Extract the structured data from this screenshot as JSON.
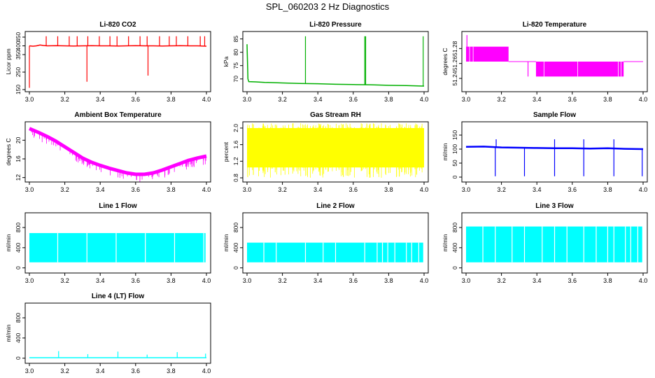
{
  "page": {
    "title": "SPL_060203  2 Hz Diagnostics"
  },
  "chart_data": [
    {
      "type": "line",
      "title": "Li-820 CO2",
      "xlabel": "",
      "ylabel": "Licor ppm",
      "color": "#ff0000",
      "xlim": [
        3.0,
        4.0
      ],
      "ylim": [
        150,
        470
      ],
      "xticks": [
        3.0,
        3.2,
        3.4,
        3.6,
        3.8,
        4.0
      ],
      "xtick_labels": [
        "3.0",
        "3.2",
        "3.4",
        "3.6",
        "3.8",
        "4.0"
      ],
      "yticks": [
        150,
        250,
        350,
        400,
        450
      ],
      "ytick_labels": [
        "150",
        "250",
        "350",
        "400",
        "450"
      ],
      "series": [
        {
          "x": [
            3.0,
            3.02,
            3.04,
            3.06,
            3.08,
            3.1,
            3.15,
            3.2,
            3.25,
            3.3,
            3.35,
            3.4,
            3.45,
            3.5,
            3.55,
            3.6,
            3.65,
            3.7,
            3.75,
            3.8,
            3.85,
            3.9,
            3.95,
            4.0
          ],
          "values": [
            400,
            398,
            400,
            405,
            402,
            400,
            401,
            400,
            399,
            400,
            401,
            400,
            400,
            399,
            400,
            401,
            400,
            400,
            399,
            400,
            401,
            400,
            400,
            398
          ]
        }
      ],
      "spikes": [
        {
          "x": 3.0,
          "y": 160
        },
        {
          "x": 3.095,
          "y": 455
        },
        {
          "x": 3.16,
          "y": 455
        },
        {
          "x": 3.225,
          "y": 455
        },
        {
          "x": 3.27,
          "y": 455
        },
        {
          "x": 3.325,
          "y": 195
        },
        {
          "x": 3.33,
          "y": 455
        },
        {
          "x": 3.395,
          "y": 455
        },
        {
          "x": 3.455,
          "y": 455
        },
        {
          "x": 3.495,
          "y": 455
        },
        {
          "x": 3.56,
          "y": 455
        },
        {
          "x": 3.625,
          "y": 455
        },
        {
          "x": 3.665,
          "y": 455
        },
        {
          "x": 3.67,
          "y": 230
        },
        {
          "x": 3.735,
          "y": 455
        },
        {
          "x": 3.79,
          "y": 455
        },
        {
          "x": 3.83,
          "y": 455
        },
        {
          "x": 3.895,
          "y": 455
        },
        {
          "x": 3.965,
          "y": 455
        },
        {
          "x": 3.99,
          "y": 455
        }
      ]
    },
    {
      "type": "line",
      "title": "Li-820 Pressure",
      "xlabel": "",
      "ylabel": "kPa",
      "color": "#00b000",
      "xlim": [
        3.0,
        4.0
      ],
      "ylim": [
        66,
        87
      ],
      "xticks": [
        3.0,
        3.2,
        3.4,
        3.6,
        3.8,
        4.0
      ],
      "xtick_labels": [
        "3.0",
        "3.2",
        "3.4",
        "3.6",
        "3.8",
        "4.0"
      ],
      "yticks": [
        70,
        75,
        80,
        85
      ],
      "ytick_labels": [
        "70",
        "75",
        "80",
        "85"
      ],
      "series": [
        {
          "x": [
            3.0,
            3.005,
            3.01,
            3.05,
            3.1,
            3.2,
            3.3,
            3.4,
            3.5,
            3.6,
            3.7,
            3.8,
            3.9,
            4.0
          ],
          "values": [
            83,
            70,
            69,
            68.9,
            68.7,
            68.5,
            68.3,
            68.2,
            68.0,
            67.9,
            67.8,
            67.6,
            67.5,
            67.3
          ]
        }
      ],
      "spikes": [
        {
          "x": 3.33,
          "y": 86
        },
        {
          "x": 3.665,
          "y": 86
        },
        {
          "x": 3.67,
          "y": 86
        },
        {
          "x": 3.995,
          "y": 86
        }
      ]
    },
    {
      "type": "line",
      "title": "Li-820 Temperature",
      "xlabel": "",
      "ylabel": "degrees C",
      "color": "#ff00ff",
      "xlim": [
        3.0,
        4.0
      ],
      "ylim": [
        51.225,
        51.3
      ],
      "xticks": [
        3.0,
        3.2,
        3.4,
        3.6,
        3.8,
        4.0
      ],
      "xtick_labels": [
        "3.0",
        "3.2",
        "3.4",
        "3.6",
        "3.8",
        "4.0"
      ],
      "yticks": [
        51.24,
        51.26,
        51.28
      ],
      "ytick_labels": [
        "51.24",
        "51.26",
        "51.28"
      ],
      "levels": [
        {
          "x0": 3.0,
          "x1": 3.24,
          "low": 51.2625,
          "high": 51.2825
        },
        {
          "x0": 3.24,
          "x1": 3.395,
          "low": 51.2625,
          "high": 51.2625
        },
        {
          "x0": 3.395,
          "x1": 3.89,
          "low": 51.2425,
          "high": 51.2625
        },
        {
          "x0": 3.89,
          "x1": 4.0,
          "low": 51.2625,
          "high": 51.2625
        }
      ],
      "spikes": [
        {
          "x": 3.005,
          "y": 51.298
        },
        {
          "x": 3.35,
          "y": 51.2425
        }
      ]
    },
    {
      "type": "line",
      "title": "Ambient Box Temperature",
      "xlabel": "",
      "ylabel": "degrees C",
      "color": "#ff00ff",
      "xlim": [
        3.0,
        4.0
      ],
      "ylim": [
        11.5,
        23.5
      ],
      "xticks": [
        3.0,
        3.2,
        3.4,
        3.6,
        3.8,
        4.0
      ],
      "xtick_labels": [
        "3.0",
        "3.2",
        "3.4",
        "3.6",
        "3.8",
        "4.0"
      ],
      "yticks": [
        12,
        16,
        20
      ],
      "ytick_labels": [
        "12",
        "16",
        "20"
      ],
      "series": [
        {
          "x": [
            3.0,
            3.05,
            3.1,
            3.15,
            3.2,
            3.25,
            3.3,
            3.35,
            3.4,
            3.45,
            3.5,
            3.55,
            3.6,
            3.65,
            3.7,
            3.75,
            3.8,
            3.85,
            3.9,
            3.95,
            4.0
          ],
          "values": [
            22.5,
            21.7,
            20.8,
            19.8,
            18.6,
            17.4,
            16.2,
            15.3,
            14.6,
            14.0,
            13.5,
            13.0,
            12.7,
            12.7,
            13.0,
            13.6,
            14.3,
            15.0,
            15.7,
            16.2,
            16.6
          ]
        }
      ]
    },
    {
      "type": "area",
      "title": "Gas Stream RH",
      "xlabel": "",
      "ylabel": "percent",
      "color": "#ffff00",
      "xlim": [
        3.0,
        4.0
      ],
      "ylim": [
        0.75,
        2.1
      ],
      "xticks": [
        3.0,
        3.2,
        3.4,
        3.6,
        3.8,
        4.0
      ],
      "xtick_labels": [
        "3.0",
        "3.2",
        "3.4",
        "3.6",
        "3.8",
        "4.0"
      ],
      "yticks": [
        0.8,
        1.2,
        1.6,
        2.0
      ],
      "ytick_labels": [
        "0.8",
        "1.2",
        "1.6",
        "2.0"
      ],
      "band": {
        "x0": 3.0,
        "x1": 4.0,
        "low": 1.05,
        "high": 2.0
      },
      "series": [
        {
          "x": [
            3.0,
            4.0
          ],
          "values": [
            1.6,
            1.6
          ]
        }
      ]
    },
    {
      "type": "line",
      "title": "Sample Flow",
      "xlabel": "",
      "ylabel": "ml/min",
      "color": "#0000ff",
      "xlim": [
        3.0,
        4.0
      ],
      "ylim": [
        -10,
        190
      ],
      "xticks": [
        3.0,
        3.2,
        3.4,
        3.6,
        3.8,
        4.0
      ],
      "xtick_labels": [
        "3.0",
        "3.2",
        "3.4",
        "3.6",
        "3.8",
        "4.0"
      ],
      "yticks": [
        0,
        50,
        100,
        150
      ],
      "ytick_labels": [
        "0",
        "50",
        "100",
        "150"
      ],
      "series": [
        {
          "x": [
            3.0,
            3.1,
            3.2,
            3.3,
            3.4,
            3.5,
            3.6,
            3.7,
            3.8,
            3.9,
            4.0
          ],
          "values": [
            108,
            109,
            106,
            105,
            104,
            103,
            103,
            102,
            103,
            101,
            100
          ]
        }
      ],
      "spikes": [
        {
          "x": 3.165,
          "y": 3
        },
        {
          "x": 3.17,
          "y": 135
        },
        {
          "x": 3.33,
          "y": 3
        },
        {
          "x": 3.5,
          "y": 3
        },
        {
          "x": 3.5,
          "y": 135
        },
        {
          "x": 3.665,
          "y": 3
        },
        {
          "x": 3.665,
          "y": 135
        },
        {
          "x": 3.835,
          "y": 3
        },
        {
          "x": 3.835,
          "y": 135
        },
        {
          "x": 3.995,
          "y": 3
        }
      ]
    },
    {
      "type": "area",
      "title": "Line 1 Flow",
      "xlabel": "",
      "ylabel": "ml/min",
      "color": "#00ffff",
      "xlim": [
        3.0,
        4.0
      ],
      "ylim": [
        -60,
        1050
      ],
      "xticks": [
        3.0,
        3.2,
        3.4,
        3.6,
        3.8,
        4.0
      ],
      "xtick_labels": [
        "3.0",
        "3.2",
        "3.4",
        "3.6",
        "3.8",
        "4.0"
      ],
      "yticks": [
        0,
        400,
        800
      ],
      "ytick_labels": [
        "0",
        "400",
        "800"
      ],
      "band": {
        "x0": 3.0,
        "x1": 3.995,
        "low": 110,
        "high": 690
      },
      "gaps": [
        3.16,
        3.325,
        3.49,
        3.655,
        3.82,
        3.985
      ]
    },
    {
      "type": "area",
      "title": "Line 2 Flow",
      "xlabel": "",
      "ylabel": "ml/min",
      "color": "#00ffff",
      "xlim": [
        3.0,
        4.0
      ],
      "ylim": [
        -60,
        1050
      ],
      "xticks": [
        3.0,
        3.2,
        3.4,
        3.6,
        3.8,
        4.0
      ],
      "xtick_labels": [
        "3.0",
        "3.2",
        "3.4",
        "3.6",
        "3.8",
        "4.0"
      ],
      "yticks": [
        0,
        400,
        800
      ],
      "ytick_labels": [
        "0",
        "400",
        "800"
      ],
      "band": {
        "x0": 3.0,
        "x1": 3.995,
        "low": 110,
        "high": 500
      },
      "gaps": [
        3.095,
        3.165,
        3.33,
        3.43,
        3.5,
        3.665,
        3.735,
        3.765,
        3.795,
        3.835,
        3.9,
        3.93,
        3.97
      ]
    },
    {
      "type": "area",
      "title": "Line 3 Flow",
      "xlabel": "",
      "ylabel": "ml/min",
      "color": "#00ffff",
      "xlim": [
        3.0,
        4.0
      ],
      "ylim": [
        -60,
        1050
      ],
      "xticks": [
        3.0,
        3.2,
        3.4,
        3.6,
        3.8,
        4.0
      ],
      "xtick_labels": [
        "3.0",
        "3.2",
        "3.4",
        "3.6",
        "3.8",
        "4.0"
      ],
      "yticks": [
        0,
        400,
        800
      ],
      "ytick_labels": [
        "0",
        "400",
        "800"
      ],
      "band": {
        "x0": 3.0,
        "x1": 3.995,
        "low": 110,
        "high": 820
      },
      "gaps": [
        3.095,
        3.165,
        3.26,
        3.33,
        3.43,
        3.5,
        3.57,
        3.665,
        3.735,
        3.8,
        3.835,
        3.9,
        3.93,
        3.97
      ]
    },
    {
      "type": "line",
      "title": "Line 4 (LT) Flow",
      "xlabel": "",
      "ylabel": "ml/min",
      "color": "#00ffff",
      "xlim": [
        3.0,
        4.0
      ],
      "ylim": [
        -60,
        1050
      ],
      "xticks": [
        3.0,
        3.2,
        3.4,
        3.6,
        3.8,
        4.0
      ],
      "xtick_labels": [
        "3.0",
        "3.2",
        "3.4",
        "3.6",
        "3.8",
        "4.0"
      ],
      "yticks": [
        0,
        400,
        800
      ],
      "ytick_labels": [
        "0",
        "400",
        "800"
      ],
      "series": [
        {
          "x": [
            3.0,
            4.0
          ],
          "values": [
            10,
            10
          ]
        }
      ],
      "spikes": [
        {
          "x": 3.165,
          "y": 140
        },
        {
          "x": 3.33,
          "y": 80
        },
        {
          "x": 3.5,
          "y": 130
        },
        {
          "x": 3.665,
          "y": 70
        },
        {
          "x": 3.835,
          "y": 120
        },
        {
          "x": 3.995,
          "y": 90
        }
      ]
    }
  ]
}
